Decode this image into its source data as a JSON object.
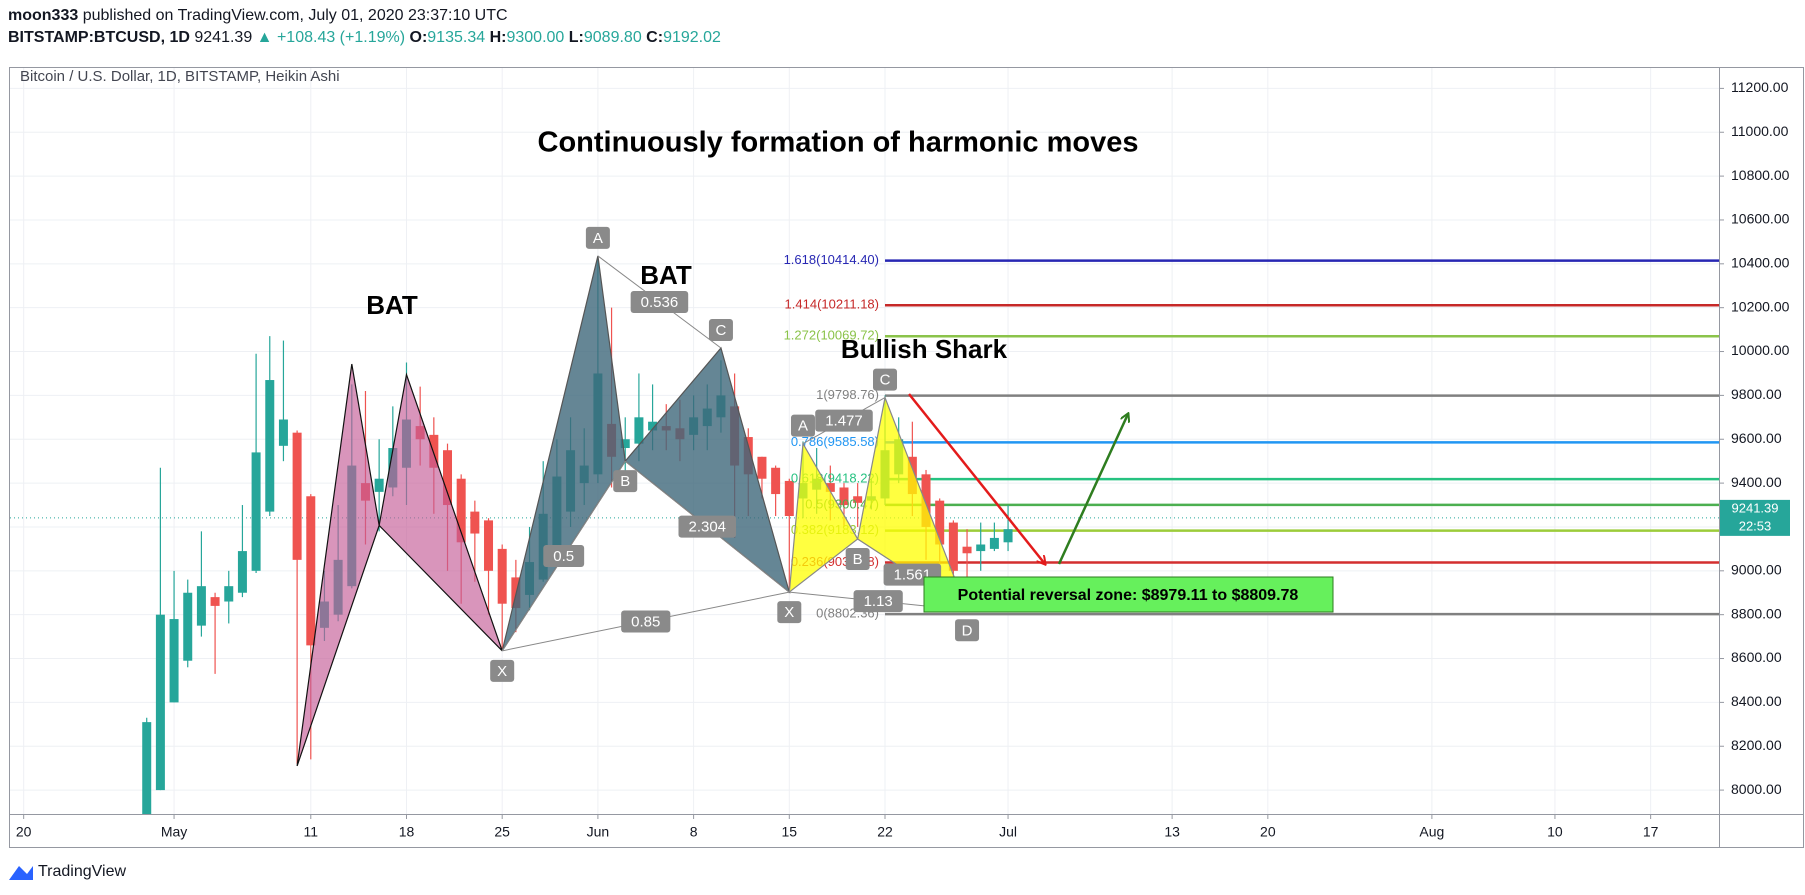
{
  "header": {
    "author": "moon333",
    "published": "published on TradingView.com, July 01, 2020 23:37:10 UTC",
    "symbol": "BITSTAMP:BTCUSD, 1D",
    "last": "9241.39",
    "change": "▲ +108.43 (+1.19%)",
    "ohlc": [
      {
        "label": "O:",
        "value": "9135.34"
      },
      {
        "label": "H:",
        "value": "9300.00"
      },
      {
        "label": "L:",
        "value": "9089.80"
      },
      {
        "label": "C:",
        "value": "9192.02"
      }
    ]
  },
  "footer": {
    "brand": "TradingView"
  },
  "chart_data": {
    "type": "candlestick",
    "legend": "Bitcoin / U.S. Dollar, 1D, BITSTAMP, Heikin Ashi",
    "title": "Continuously formation of harmonic moves",
    "up_color": "#26a69a",
    "down_color": "#ef5350",
    "grid": true,
    "x": [
      "2020-04-29",
      "2020-04-30",
      "2020-05-01",
      "2020-05-02",
      "2020-05-03",
      "2020-05-04",
      "2020-05-05",
      "2020-05-06",
      "2020-05-07",
      "2020-05-08",
      "2020-05-09",
      "2020-05-10",
      "2020-05-11",
      "2020-05-12",
      "2020-05-13",
      "2020-05-14",
      "2020-05-15",
      "2020-05-16",
      "2020-05-17",
      "2020-05-18",
      "2020-05-19",
      "2020-05-20",
      "2020-05-21",
      "2020-05-22",
      "2020-05-23",
      "2020-05-24",
      "2020-05-25",
      "2020-05-26",
      "2020-05-27",
      "2020-05-28",
      "2020-05-29",
      "2020-05-30",
      "2020-05-31",
      "2020-06-01",
      "2020-06-02",
      "2020-06-03",
      "2020-06-04",
      "2020-06-05",
      "2020-06-06",
      "2020-06-07",
      "2020-06-08",
      "2020-06-09",
      "2020-06-10",
      "2020-06-11",
      "2020-06-12",
      "2020-06-13",
      "2020-06-14",
      "2020-06-15",
      "2020-06-16",
      "2020-06-17",
      "2020-06-18",
      "2020-06-19",
      "2020-06-20",
      "2020-06-21",
      "2020-06-22",
      "2020-06-23",
      "2020-06-24",
      "2020-06-25",
      "2020-06-26",
      "2020-06-27",
      "2020-06-28",
      "2020-06-29",
      "2020-06-30",
      "2020-07-01"
    ],
    "open": [
      7700,
      8000,
      8400,
      8590,
      8750,
      8880,
      8860,
      8900,
      9000,
      9270,
      9570,
      9630,
      9340,
      8740,
      8800,
      8930,
      9400,
      9360,
      9380,
      9470,
      9660,
      9620,
      9550,
      9420,
      9270,
      9230,
      9100,
      8970,
      8890,
      8960,
      9100,
      9270,
      9400,
      9440,
      9670,
      9560,
      9580,
      9640,
      9660,
      9650,
      9620,
      9660,
      9700,
      9750,
      9610,
      9520,
      9470,
      9410,
      9330,
      9370,
      9400,
      9380,
      9340,
      9320,
      9330,
      9440,
      9520,
      9440,
      9320,
      9220,
      9110,
      9090,
      9100,
      9130
    ],
    "high": [
      8330,
      9470,
      9000,
      8960,
      9180,
      8900,
      9000,
      9300,
      9990,
      10070,
      10050,
      9640,
      9350,
      9000,
      9300,
      9850,
      9820,
      9600,
      9750,
      9950,
      9840,
      9700,
      9580,
      9440,
      9320,
      9240,
      9120,
      9050,
      9200,
      9500,
      9600,
      9700,
      9650,
      10430,
      10200,
      9700,
      9900,
      9850,
      9760,
      9780,
      9800,
      9850,
      9960,
      9900,
      9650,
      9520,
      9480,
      9420,
      9590,
      9560,
      9480,
      9400,
      9400,
      9420,
      9800,
      9700,
      9680,
      9460,
      9330,
      9230,
      9190,
      9220,
      9220,
      9300
    ],
    "low": [
      7700,
      8000,
      8400,
      8560,
      8700,
      8530,
      8760,
      8880,
      8990,
      9250,
      9500,
      8120,
      8140,
      8680,
      8770,
      8920,
      9120,
      9180,
      9340,
      9300,
      9480,
      9260,
      9000,
      8850,
      8950,
      8800,
      8640,
      8720,
      8820,
      8950,
      9050,
      9200,
      9300,
      9400,
      9380,
      9400,
      9500,
      9550,
      9550,
      9500,
      9550,
      9550,
      9630,
      9150,
      9250,
      9330,
      9250,
      8900,
      9240,
      9260,
      9230,
      9200,
      9200,
      9280,
      9300,
      9400,
      9250,
      9050,
      9000,
      8850,
      8950,
      9000,
      9090,
      9090
    ],
    "close": [
      8310,
      8800,
      8780,
      8900,
      8930,
      8840,
      8930,
      9090,
      9540,
      9870,
      9690,
      9050,
      8660,
      8860,
      9050,
      9480,
      9320,
      9420,
      9560,
      9690,
      9600,
      9470,
      9300,
      9130,
      9170,
      9000,
      8850,
      8830,
      9040,
      9260,
      9430,
      9550,
      9480,
      9900,
      9520,
      9600,
      9700,
      9680,
      9640,
      9600,
      9700,
      9740,
      9800,
      9480,
      9440,
      9420,
      9350,
      9250,
      9400,
      9420,
      9360,
      9300,
      9310,
      9340,
      9550,
      9600,
      9350,
      9200,
      9120,
      9000,
      9080,
      9120,
      9150,
      9190
    ],
    "xlim": [
      "2020-04-19",
      "2020-08-22"
    ],
    "xticks": [
      {
        "value": "2020-04-20",
        "label": "20"
      },
      {
        "value": "2020-05-01",
        "label": "May"
      },
      {
        "value": "2020-05-11",
        "label": "11"
      },
      {
        "value": "2020-05-18",
        "label": "18"
      },
      {
        "value": "2020-05-25",
        "label": "25"
      },
      {
        "value": "2020-06-01",
        "label": "Jun"
      },
      {
        "value": "2020-06-08",
        "label": "8"
      },
      {
        "value": "2020-06-15",
        "label": "15"
      },
      {
        "value": "2020-06-22",
        "label": "22"
      },
      {
        "value": "2020-07-01",
        "label": "Jul"
      },
      {
        "value": "2020-07-13",
        "label": "13"
      },
      {
        "value": "2020-07-20",
        "label": "20"
      },
      {
        "value": "2020-08-01",
        "label": "Aug"
      },
      {
        "value": "2020-08-10",
        "label": "10"
      },
      {
        "value": "2020-08-17",
        "label": "17"
      }
    ],
    "ylim": [
      7891,
      11293
    ],
    "yticks": [
      {
        "value": 8000,
        "label": "8000.00"
      },
      {
        "value": 8200,
        "label": "8200.00"
      },
      {
        "value": 8400,
        "label": "8400.00"
      },
      {
        "value": 8600,
        "label": "8600.00"
      },
      {
        "value": 8800,
        "label": "8800.00"
      },
      {
        "value": 9000,
        "label": "9000.00"
      },
      {
        "value": 9200,
        "label": "9200.00"
      },
      {
        "value": 9400,
        "label": "9400.00"
      },
      {
        "value": 9600,
        "label": "9600.00"
      },
      {
        "value": 9800,
        "label": "9800.00"
      },
      {
        "value": 10000,
        "label": "10000.00"
      },
      {
        "value": 10200,
        "label": "10200.00"
      },
      {
        "value": 10400,
        "label": "10400.00"
      },
      {
        "value": 10600,
        "label": "10600.00"
      },
      {
        "value": 10800,
        "label": "10800.00"
      },
      {
        "value": 11000,
        "label": "11000.00"
      },
      {
        "value": 11200,
        "label": "11200.00"
      }
    ],
    "last_price": {
      "value": 9241.39,
      "label": "9241.39",
      "countdown": "22:53",
      "color": "#26a69a"
    },
    "patterns": [
      {
        "name": "BAT",
        "fill": "rgba(196,92,150,0.65)",
        "stroke": "#111",
        "points": [
          {
            "date": "2020-05-10",
            "price": 8110
          },
          {
            "date": "2020-05-14",
            "price": 9943
          },
          {
            "date": "2020-05-16",
            "price": 9207
          },
          {
            "date": "2020-05-18",
            "price": 9895
          },
          {
            "date": "2020-05-25",
            "price": 8635
          }
        ],
        "ratios": []
      },
      {
        "name": "BAT",
        "fill": "rgba(62,104,122,0.8)",
        "stroke": "#555",
        "points": [
          {
            "label": "X",
            "date": "2020-05-25",
            "price": 8635
          },
          {
            "label": "A",
            "date": "2020-06-01",
            "price": 10436
          },
          {
            "label": "B",
            "date": "2020-06-03",
            "price": 9500
          },
          {
            "label": "C",
            "date": "2020-06-10",
            "price": 10016
          },
          {
            "date": "2020-06-15",
            "price": 8903
          }
        ],
        "ratios": [
          "0.536",
          "0.5",
          "2.304",
          "0.85"
        ]
      },
      {
        "name": "Bullish Shark",
        "fill": "rgba(255,255,0,0.75)",
        "stroke": "#888",
        "points": [
          {
            "label": "X",
            "date": "2020-06-15",
            "price": 8903
          },
          {
            "label": "A",
            "date": "2020-06-16",
            "price": 9580
          },
          {
            "label": "B",
            "date": "2020-06-20",
            "price": 9145
          },
          {
            "label": "C",
            "date": "2020-06-22",
            "price": 9790
          },
          {
            "label": "D",
            "date": "2020-06-28",
            "price": 8820
          }
        ],
        "ratios": [
          "1.477",
          "1.13",
          "1.561"
        ]
      }
    ],
    "fib": {
      "start": "2020-06-22",
      "levels": [
        {
          "value": 10414.4,
          "label": "1.618(10414.40)",
          "color": "#2727b3"
        },
        {
          "value": 10211.18,
          "label": "1.414(10211.18)",
          "color": "#c62828"
        },
        {
          "value": 10069.72,
          "label": "1.272(10069.72)",
          "color": "#8bc34a"
        },
        {
          "value": 9798.76,
          "label": "1(9798.76)",
          "color": "#808080"
        },
        {
          "value": 9585.58,
          "label": "0.786(9585.58)",
          "color": "#2196f3"
        },
        {
          "value": 9418.22,
          "label": "0.618(9418.22)",
          "color": "#26c281"
        },
        {
          "value": 9300.47,
          "label": "0.5(9300.47)",
          "color": "#4caf50"
        },
        {
          "value": 9183.12,
          "label": "0.382(9183.12)",
          "color": "#9ccc3a"
        },
        {
          "value": 9037.68,
          "label": "0.236(9037.68)",
          "color": "#d32f2f"
        },
        {
          "value": 8802.36,
          "label": "0(8802.36)",
          "color": "#808080"
        }
      ]
    },
    "prz": {
      "label": "Potential reversal zone: $8979.11 to $8809.78",
      "color": "#66f05c"
    }
  }
}
